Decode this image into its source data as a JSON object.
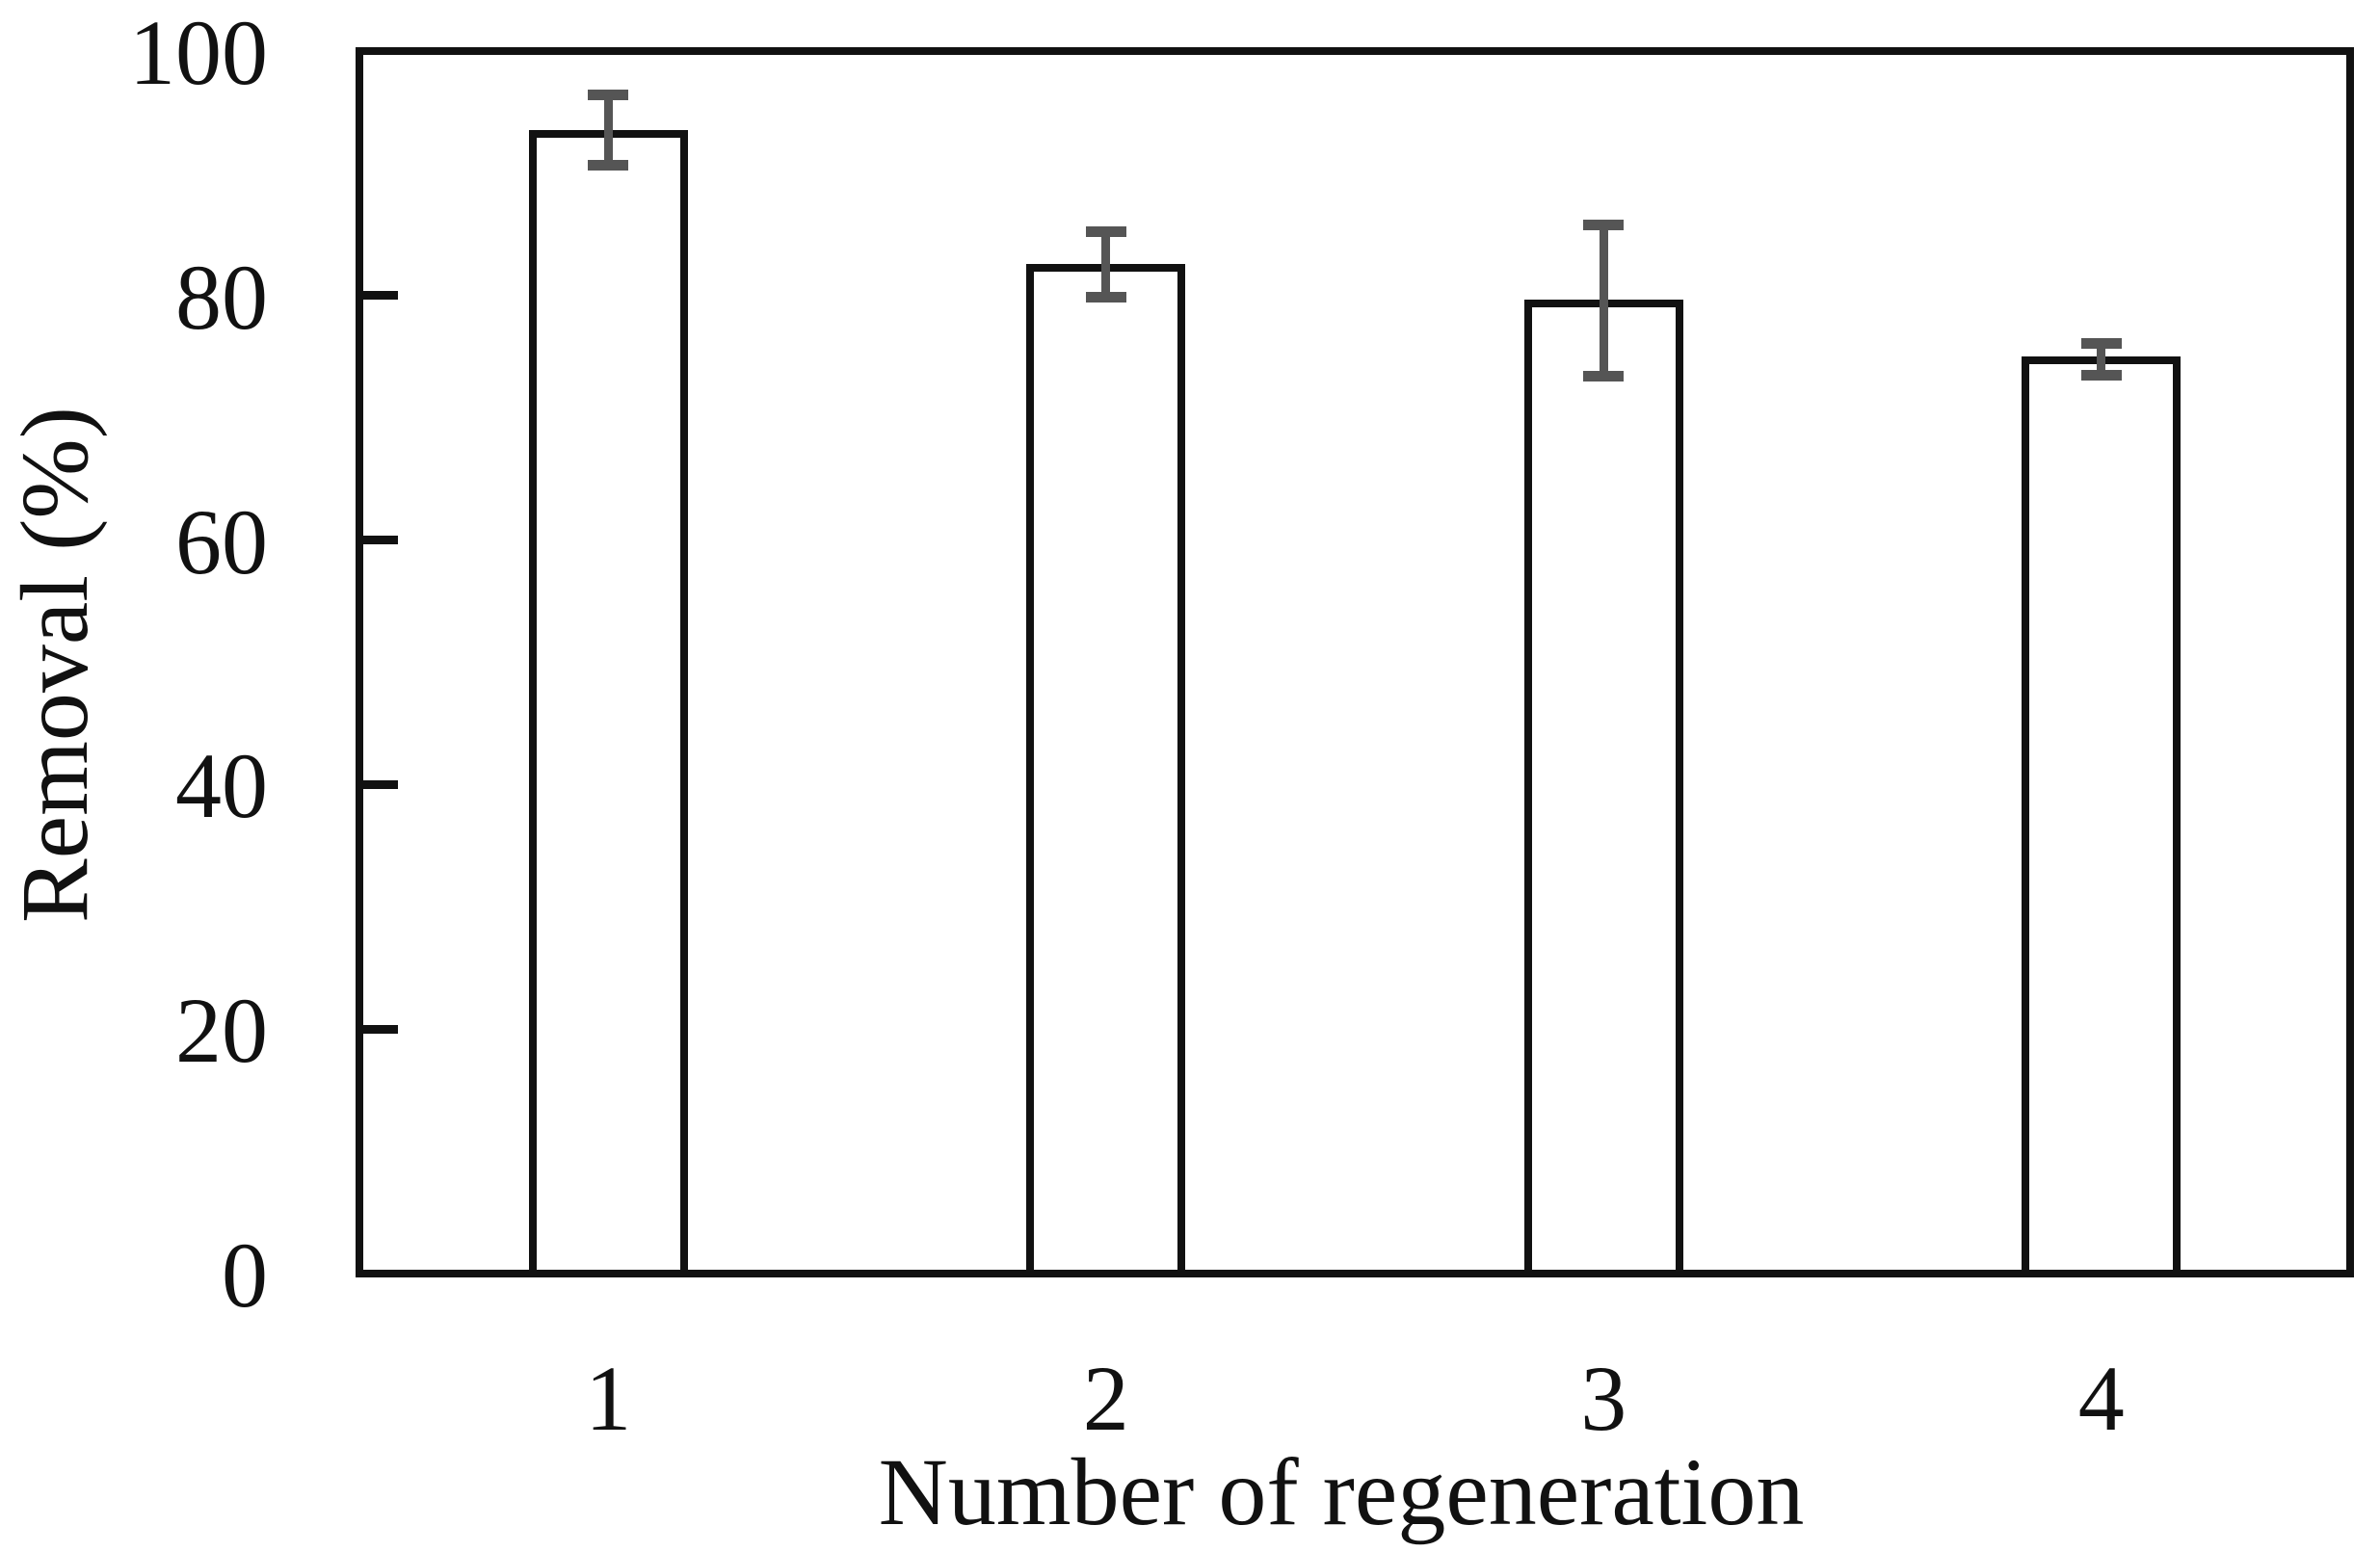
{
  "figure": {
    "background": "#ffffff"
  },
  "chart_data": {
    "type": "bar",
    "title": "",
    "xlabel": "Number of regeneration",
    "ylabel": "Removal (%)",
    "categories": [
      "1",
      "2",
      "3",
      "4"
    ],
    "values": [
      93.5,
      82.6,
      79.7,
      75.0
    ],
    "error_bars": {
      "low": [
        90.7,
        79.9,
        73.4,
        73.5
      ],
      "high": [
        96.4,
        85.2,
        85.8,
        76.1
      ]
    },
    "ylim": [
      0,
      100
    ],
    "yticks": [
      0,
      20,
      40,
      60,
      80,
      100
    ],
    "grid": false,
    "legend": null,
    "bar_fill": "#ffffff",
    "bar_border_color": "#111111",
    "error_bar_color": "#555555",
    "axis_color": "#111111"
  }
}
